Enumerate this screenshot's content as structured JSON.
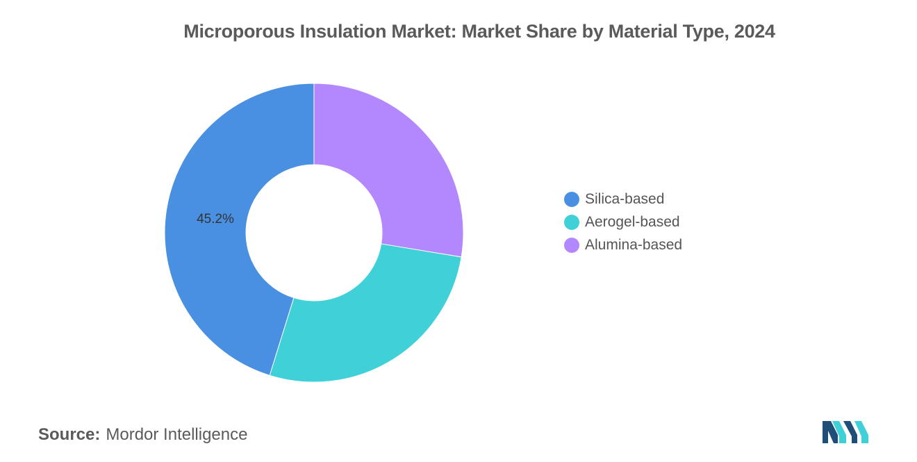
{
  "chart_data": {
    "type": "pie",
    "title": "Microporous Insulation Market: Market Share by Material Type, 2024",
    "donut": true,
    "categories": [
      "Silica-based",
      "Aerogel-based",
      "Alumina-based"
    ],
    "values": [
      45.2,
      27.2,
      27.6
    ],
    "colors": [
      "#4a90e2",
      "#3fd0d8",
      "#b388ff"
    ],
    "data_labels": [
      "45.2%",
      "",
      ""
    ],
    "legend_position": "right"
  },
  "source": {
    "label": "Source:",
    "text": "Mordor Intelligence"
  },
  "logo": {
    "icon": "mordor-intelligence-logo-icon",
    "colors": [
      "#1f4e79",
      "#3fd0d8"
    ]
  }
}
